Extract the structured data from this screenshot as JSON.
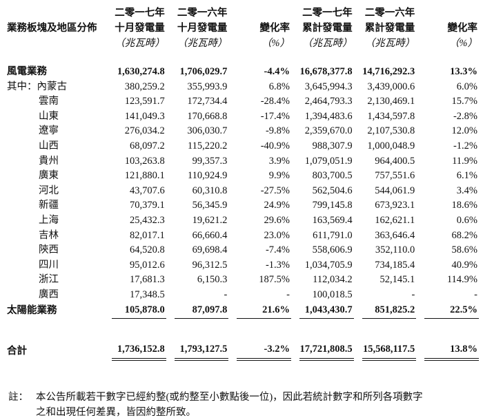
{
  "header": {
    "segment_label": "業務板塊及地區分佈",
    "columns": [
      {
        "line1": "二零一七年",
        "line2": "十月發電量",
        "unit": "（兆瓦時）"
      },
      {
        "line1": "二零一六年",
        "line2": "十月發電量",
        "unit": "（兆瓦時）"
      },
      {
        "line1": "",
        "line2": "變化率",
        "unit": "（%）"
      },
      {
        "line1": "二零一七年",
        "line2": "累計發電量",
        "unit": "（兆瓦時）"
      },
      {
        "line1": "二零一六年",
        "line2": "累計發電量",
        "unit": "（兆瓦時）"
      },
      {
        "line1": "",
        "line2": "變化率",
        "unit": "（%）"
      }
    ]
  },
  "wind": {
    "label": "風電業務",
    "values": [
      "1,630,274.8",
      "1,706,029.7",
      "-4.4%",
      "16,678,377.8",
      "14,716,292.3",
      "13.3%"
    ]
  },
  "regions": [
    {
      "label": "其中：內蒙古",
      "values": [
        "380,259.2",
        "355,993.9",
        "6.8%",
        "3,645,994.3",
        "3,439,000.6",
        "6.0%"
      ]
    },
    {
      "label": "雲南",
      "values": [
        "123,591.7",
        "172,734.4",
        "-28.4%",
        "2,464,793.3",
        "2,130,469.1",
        "15.7%"
      ]
    },
    {
      "label": "山東",
      "values": [
        "141,049.3",
        "170,668.8",
        "-17.4%",
        "1,394,483.6",
        "1,434,597.8",
        "-2.8%"
      ]
    },
    {
      "label": "遼寧",
      "values": [
        "276,034.2",
        "306,030.7",
        "-9.8%",
        "2,359,670.0",
        "2,107,530.8",
        "12.0%"
      ]
    },
    {
      "label": "山西",
      "values": [
        "68,097.2",
        "115,220.2",
        "-40.9%",
        "988,307.9",
        "1,000,048.9",
        "-1.2%"
      ]
    },
    {
      "label": "貴州",
      "values": [
        "103,263.8",
        "99,357.3",
        "3.9%",
        "1,079,051.9",
        "964,400.5",
        "11.9%"
      ]
    },
    {
      "label": "廣東",
      "values": [
        "121,880.1",
        "110,924.9",
        "9.9%",
        "803,700.5",
        "757,551.6",
        "6.1%"
      ]
    },
    {
      "label": "河北",
      "values": [
        "43,707.6",
        "60,310.8",
        "-27.5%",
        "562,504.6",
        "544,061.9",
        "3.4%"
      ]
    },
    {
      "label": "新疆",
      "values": [
        "70,379.1",
        "56,345.9",
        "24.9%",
        "799,145.8",
        "673,923.1",
        "18.6%"
      ]
    },
    {
      "label": "上海",
      "values": [
        "25,432.3",
        "19,621.2",
        "29.6%",
        "163,569.4",
        "162,621.1",
        "0.6%"
      ]
    },
    {
      "label": "吉林",
      "values": [
        "82,017.1",
        "66,660.4",
        "23.0%",
        "611,791.0",
        "363,646.4",
        "68.2%"
      ]
    },
    {
      "label": "陝西",
      "values": [
        "64,520.8",
        "69,698.4",
        "-7.4%",
        "558,606.9",
        "352,110.0",
        "58.6%"
      ]
    },
    {
      "label": "四川",
      "values": [
        "95,012.6",
        "96,312.5",
        "-1.3%",
        "1,034,705.9",
        "734,185.4",
        "40.9%"
      ]
    },
    {
      "label": "浙江",
      "values": [
        "17,681.3",
        "6,150.3",
        "187.5%",
        "112,034.2",
        "52,145.1",
        "114.9%"
      ]
    },
    {
      "label": "廣西",
      "values": [
        "17,348.5",
        "-",
        "-",
        "100,018.5",
        "-",
        "-"
      ]
    }
  ],
  "solar": {
    "label": "太陽能業務",
    "values": [
      "105,878.0",
      "87,097.8",
      "21.6%",
      "1,043,430.7",
      "851,825.2",
      "22.5%"
    ]
  },
  "total": {
    "label": "合計",
    "values": [
      "1,736,152.8",
      "1,793,127.5",
      "-3.2%",
      "17,721,808.5",
      "15,568,117.5",
      "13.8%"
    ]
  },
  "note": {
    "prefix": "註：",
    "line1": "本公告所載若干數字已經約整(或約整至小數點後一位)，因此若統計數字和所列各項數字",
    "line2": "之和出現任何差異，皆因約整所致。"
  }
}
